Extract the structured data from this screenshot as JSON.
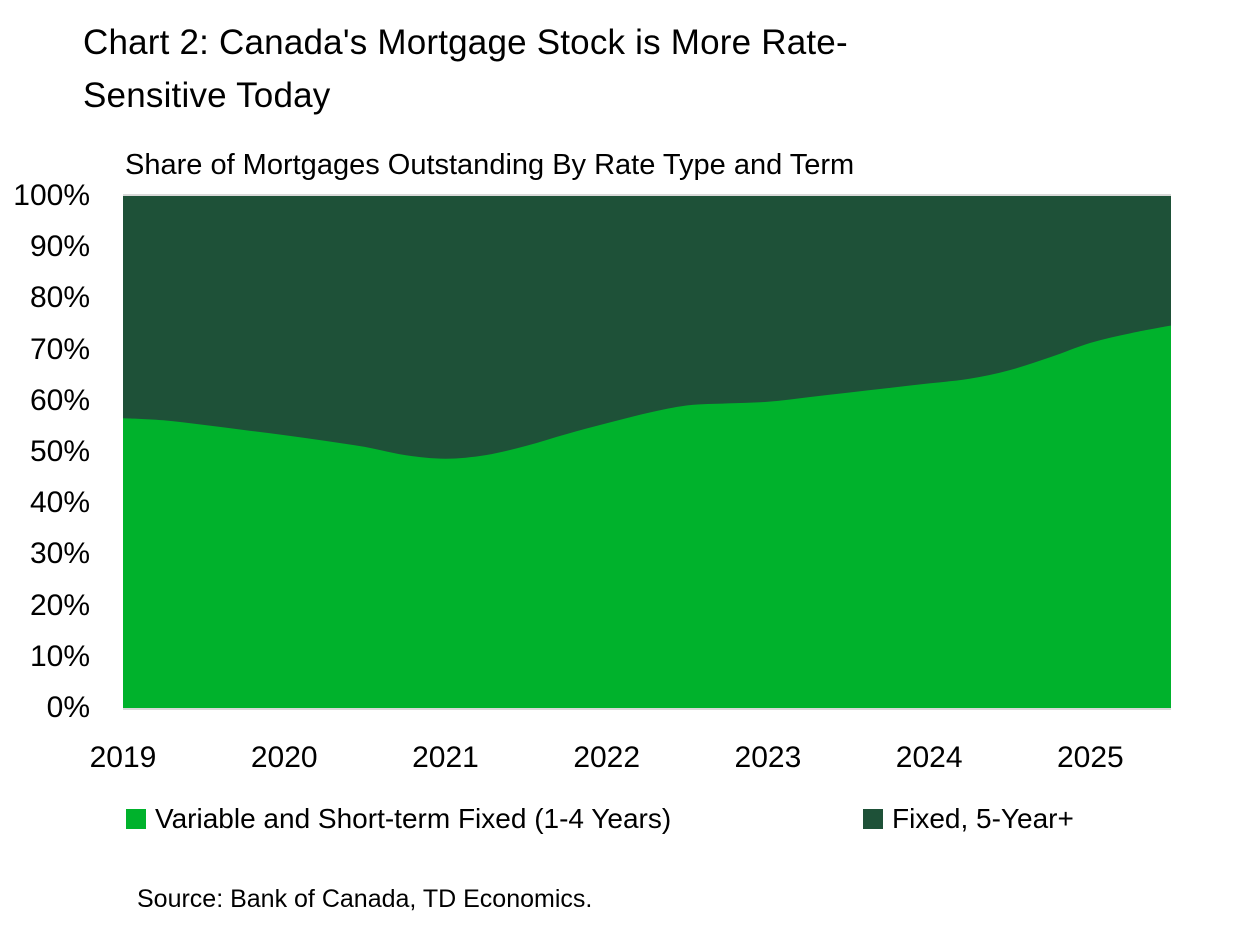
{
  "header": {
    "title_line1": "Chart 2: Canada's Mortgage Stock is More Rate-",
    "title_line2": "Sensitive Today",
    "subtitle": "Share of Mortgages Outstanding By Rate Type and Term"
  },
  "legend": {
    "items": [
      {
        "label": "Variable and Short-term Fixed (1-4 Years)",
        "color": "#00B22C"
      },
      {
        "label": "Fixed, 5-Year+",
        "color": "#1E5138"
      }
    ]
  },
  "footer": {
    "source": "Source: Bank of Canada, TD Economics."
  },
  "colors": {
    "variable_green": "#00B22C",
    "fixed_dark_green": "#1E5138",
    "axis_line": "#D9D9D9",
    "text": "#000000"
  },
  "chart_data": {
    "type": "area",
    "stacked": true,
    "stacked_to_100_percent": true,
    "title": "Share of Mortgages Outstanding By Rate Type and Term",
    "xlabel": "",
    "ylabel": "",
    "x": [
      2019.0,
      2019.25,
      2019.5,
      2019.75,
      2020.0,
      2020.25,
      2020.5,
      2020.75,
      2021.0,
      2021.25,
      2021.5,
      2021.75,
      2022.0,
      2022.25,
      2022.5,
      2022.75,
      2023.0,
      2023.25,
      2023.5,
      2023.75,
      2024.0,
      2024.25,
      2024.5,
      2024.75,
      2025.0,
      2025.25,
      2025.5
    ],
    "series": [
      {
        "name": "Variable and Short-term Fixed (1-4 Years)",
        "color": "#00B22C",
        "values": [
          56.6,
          56.2,
          55.3,
          54.3,
          53.3,
          52.2,
          51.0,
          49.4,
          48.7,
          49.4,
          51.2,
          53.5,
          55.6,
          57.6,
          59.1,
          59.5,
          59.8,
          60.7,
          61.6,
          62.5,
          63.4,
          64.3,
          66.0,
          68.5,
          71.3,
          73.2,
          74.7
        ]
      },
      {
        "name": "Fixed, 5-Year+",
        "color": "#1E5138",
        "values": [
          43.4,
          43.8,
          44.7,
          45.7,
          46.7,
          47.8,
          49.0,
          50.6,
          51.3,
          50.6,
          48.8,
          46.5,
          44.4,
          42.4,
          40.9,
          40.5,
          40.2,
          39.3,
          38.4,
          37.5,
          36.6,
          35.7,
          34.0,
          31.5,
          28.7,
          26.8,
          25.3
        ]
      }
    ],
    "xticks": [
      "2019",
      "2020",
      "2021",
      "2022",
      "2023",
      "2024",
      "2025"
    ],
    "yticks": [
      "0%",
      "10%",
      "20%",
      "30%",
      "40%",
      "50%",
      "60%",
      "70%",
      "80%",
      "90%",
      "100%"
    ],
    "xlim": [
      2019.0,
      2025.5
    ],
    "ylim": [
      0,
      100
    ],
    "grid": false,
    "legend_position": "bottom",
    "axis_line_color": "#D9D9D9"
  }
}
